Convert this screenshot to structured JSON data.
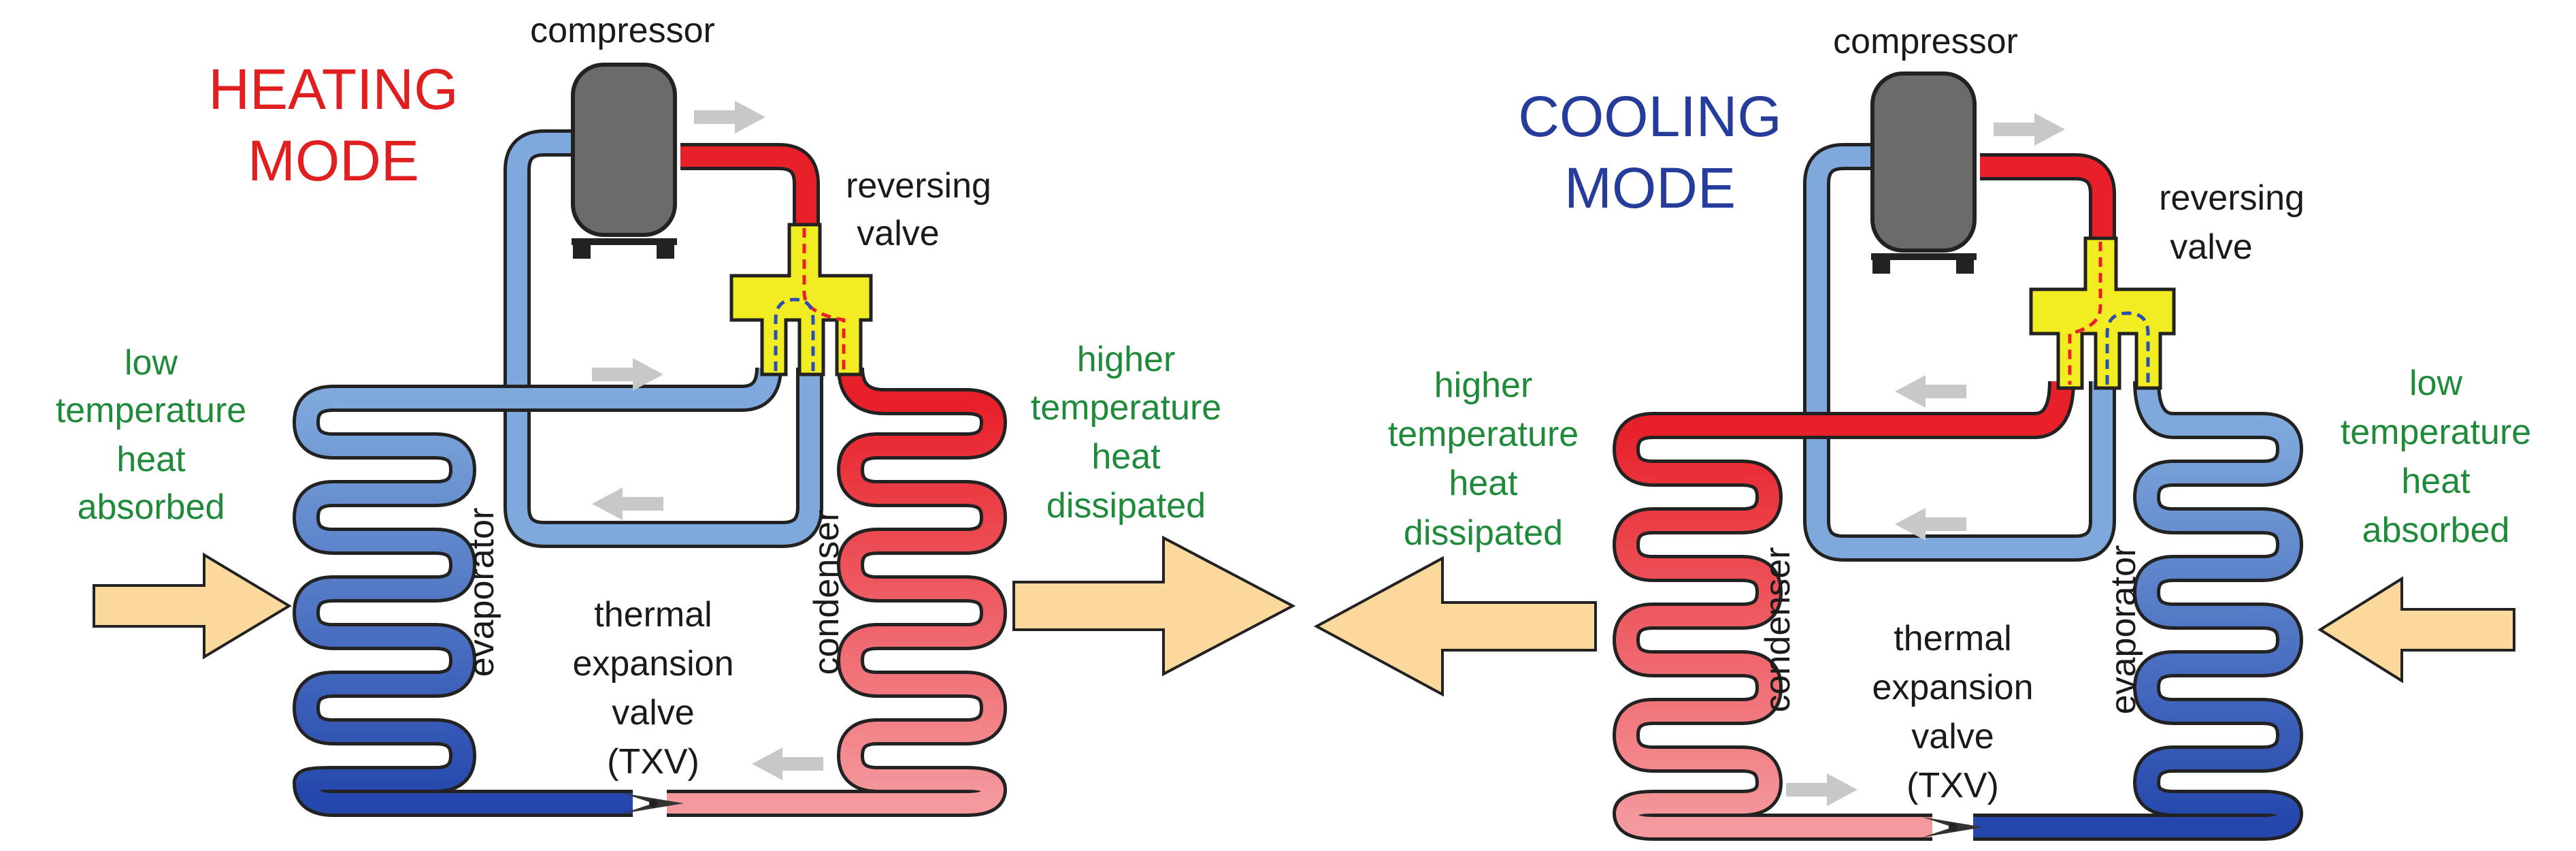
{
  "colors": {
    "hot": "#e8202a",
    "cold_pipe": "#7fa9dc",
    "cold_coil": "#2a4fb0",
    "warm_coil": "#f08c90",
    "valve": "#f2ec22",
    "arrow_fill": "#fbd99c",
    "flow_arrow": "#c8c8c8",
    "compressor": "#6b6b6b",
    "label_green": "#1f8a3a",
    "heating_red": "#e02020",
    "cooling_blue": "#253c9a"
  },
  "heating": {
    "mode_line1": "HEATING",
    "mode_line2": "MODE",
    "compressor": "compressor",
    "valve_line1": "reversing",
    "valve_line2": "valve",
    "left_note": [
      "low",
      "temperature",
      "heat",
      "absorbed"
    ],
    "right_note": [
      "higher",
      "temperature",
      "heat",
      "dissipated"
    ],
    "left_coil": "evaporator",
    "right_coil": "condenser",
    "txv": [
      "thermal",
      "expansion",
      "valve",
      "(TXV)"
    ]
  },
  "cooling": {
    "mode_line1": "COOLING",
    "mode_line2": "MODE",
    "compressor": "compressor",
    "valve_line1": "reversing",
    "valve_line2": "valve",
    "left_note": [
      "higher",
      "temperature",
      "heat",
      "dissipated"
    ],
    "right_note": [
      "low",
      "temperature",
      "heat",
      "absorbed"
    ],
    "left_coil": "condenser",
    "right_coil": "evaporator",
    "txv": [
      "thermal",
      "expansion",
      "valve",
      "(TXV)"
    ]
  }
}
